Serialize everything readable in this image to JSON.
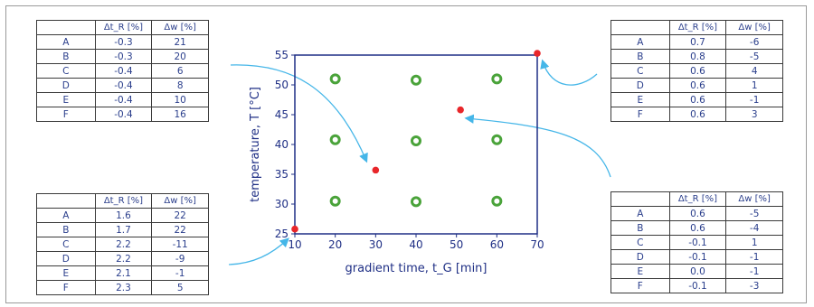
{
  "tables": {
    "top_left": {
      "headers": [
        "",
        "Δt_R [%]",
        "Δw [%]"
      ],
      "rows": [
        [
          "A",
          "-0.3",
          "21"
        ],
        [
          "B",
          "-0.3",
          "20"
        ],
        [
          "C",
          "-0.4",
          "6"
        ],
        [
          "D",
          "-0.4",
          "8"
        ],
        [
          "E",
          "-0.4",
          "10"
        ],
        [
          "F",
          "-0.4",
          "16"
        ]
      ]
    },
    "bottom_left": {
      "headers": [
        "",
        "Δt_R [%]",
        "Δw [%]"
      ],
      "rows": [
        [
          "A",
          "1.6",
          "22"
        ],
        [
          "B",
          "1.7",
          "22"
        ],
        [
          "C",
          "2.2",
          "-11"
        ],
        [
          "D",
          "2.2",
          "-9"
        ],
        [
          "E",
          "2.1",
          "-1"
        ],
        [
          "F",
          "2.3",
          "5"
        ]
      ]
    },
    "top_right": {
      "headers": [
        "",
        "Δt_R [%]",
        "Δw [%]"
      ],
      "rows": [
        [
          "A",
          "0.7",
          "-6"
        ],
        [
          "B",
          "0.8",
          "-5"
        ],
        [
          "C",
          "0.6",
          "4"
        ],
        [
          "D",
          "0.6",
          "1"
        ],
        [
          "E",
          "0.6",
          "-1"
        ],
        [
          "F",
          "0.6",
          "3"
        ]
      ]
    },
    "bottom_right": {
      "headers": [
        "",
        "Δt_R [%]",
        "Δw [%]"
      ],
      "rows": [
        [
          "A",
          "0.6",
          "-5"
        ],
        [
          "B",
          "0.6",
          "-4"
        ],
        [
          "C",
          "-0.1",
          "1"
        ],
        [
          "D",
          "-0.1",
          "-1"
        ],
        [
          "E",
          "0.0",
          "-1"
        ],
        [
          "F",
          "-0.1",
          "-3"
        ]
      ]
    }
  },
  "chart_data": {
    "type": "scatter",
    "title": "",
    "xlabel": "gradient time, t_G [min]",
    "ylabel": "temperature, T [°C]",
    "xlim": [
      10,
      70
    ],
    "ylim": [
      25,
      55
    ],
    "xticks": [
      "10",
      "20",
      "30",
      "40",
      "50",
      "60",
      "70"
    ],
    "yticks": [
      "25",
      "30",
      "35",
      "40",
      "45",
      "50",
      "55"
    ],
    "grid": false,
    "series": [
      {
        "marker": "open-circle",
        "color": "#4aa33a",
        "points": [
          [
            20,
            51
          ],
          [
            40,
            50.8
          ],
          [
            60,
            51
          ],
          [
            20,
            40.8
          ],
          [
            40,
            40.6
          ],
          [
            60,
            40.8
          ],
          [
            20,
            30.5
          ],
          [
            40,
            30.4
          ],
          [
            60,
            30.5
          ]
        ]
      },
      {
        "marker": "filled-dot",
        "color": "#e8262a",
        "points": [
          [
            10,
            25.8
          ],
          [
            30,
            35.7
          ],
          [
            51,
            45.8
          ],
          [
            70,
            55.3
          ]
        ]
      }
    ],
    "arrow_color": "#45b6e8"
  },
  "colors": {
    "axis": "#1f2f85",
    "table_text": "#2b3f8c",
    "arrow": "#45b6e8"
  }
}
